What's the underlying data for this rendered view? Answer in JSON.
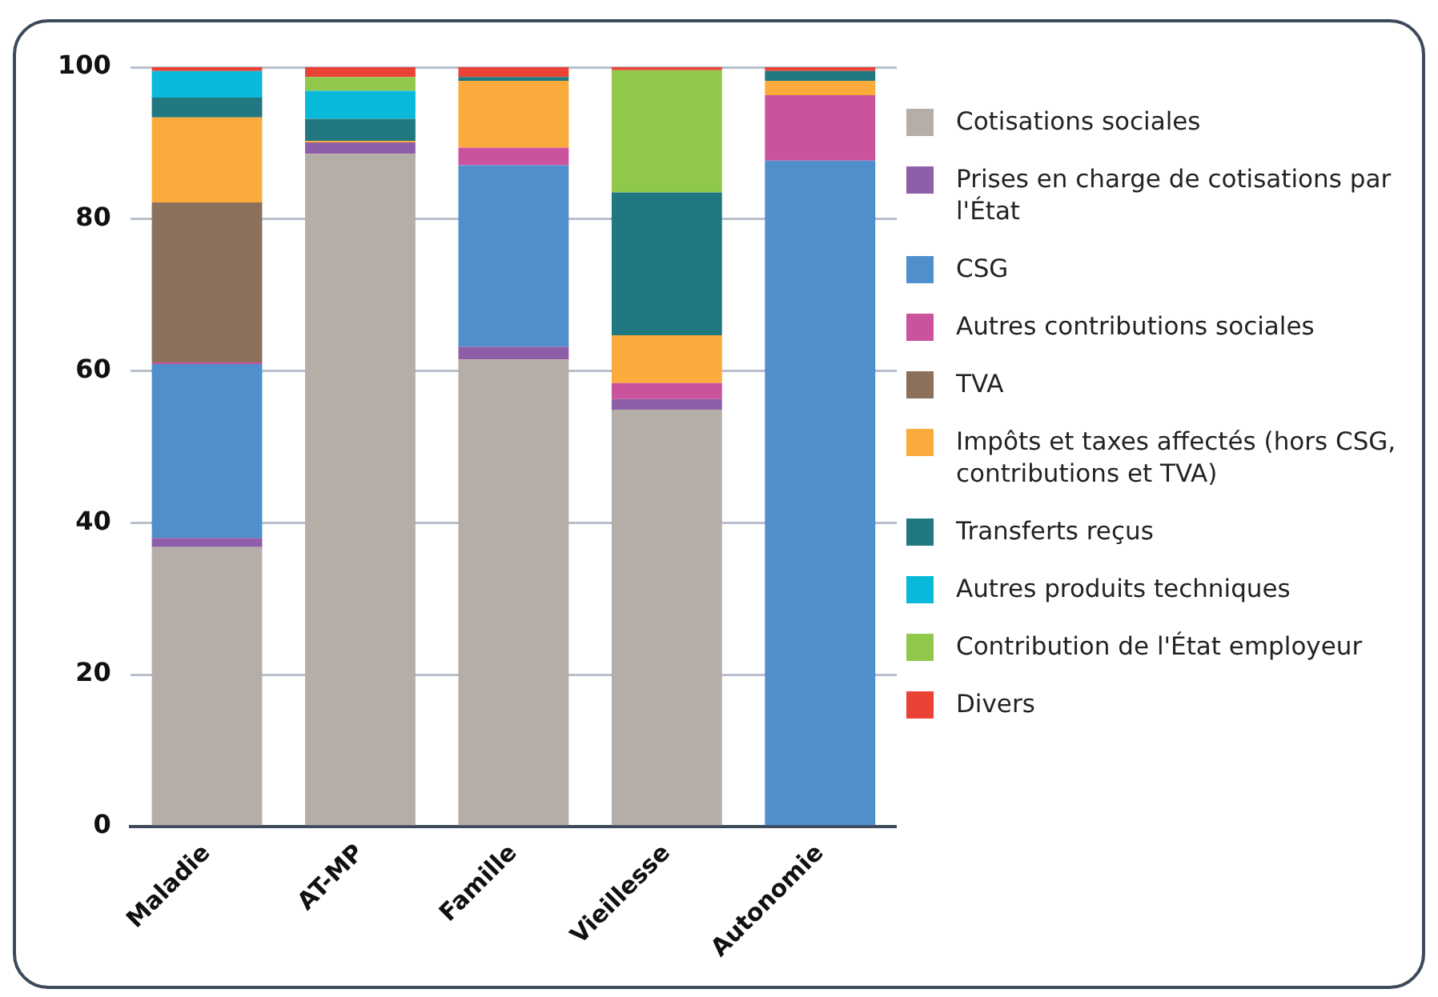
{
  "chart_data": {
    "type": "bar",
    "stacked": true,
    "categories": [
      "Maladie",
      "AT-MP",
      "Famille",
      "Vieillesse",
      "Autonomie"
    ],
    "series": [
      {
        "name": "Cotisations sociales",
        "color": "#b5ada8",
        "values": [
          36.8,
          88.6,
          61.5,
          54.9,
          null
        ]
      },
      {
        "name": "Prises en charge de cotisations par l'État",
        "color": "#8e5fa8",
        "values": [
          1.2,
          1.5,
          1.7,
          1.4,
          null
        ]
      },
      {
        "name": "CSG",
        "color": "#4f8fcc",
        "values": [
          22.9,
          null,
          23.9,
          null,
          87.7
        ]
      },
      {
        "name": "Autres contributions sociales",
        "color": "#cb529d",
        "values": [
          0.2,
          null,
          2.3,
          2.1,
          8.6
        ]
      },
      {
        "name": "TVA",
        "color": "#8b715c",
        "values": [
          21.1,
          null,
          null,
          null,
          null
        ]
      },
      {
        "name": "Impôts et taxes affectés (hors CSG, contributions et TVA)",
        "color": "#fbab3b",
        "values": [
          11.2,
          0.2,
          8.8,
          6.3,
          1.9
        ]
      },
      {
        "name": "Transferts reçus",
        "color": "#227880",
        "values": [
          2.6,
          2.9,
          0.5,
          18.8,
          1.3
        ]
      },
      {
        "name": "Autres produits techniques",
        "color": "#08b9d9",
        "values": [
          3.5,
          3.7,
          null,
          null,
          null
        ]
      },
      {
        "name": "Contribution de l'État employeur",
        "color": "#8fc84a",
        "values": [
          null,
          1.8,
          null,
          16.1,
          null
        ]
      },
      {
        "name": "Divers",
        "color": "#ea4335",
        "values": [
          0.5,
          1.3,
          1.3,
          0.4,
          0.5
        ]
      }
    ],
    "ylim": [
      0,
      100
    ],
    "yticks": [
      0,
      20,
      40,
      60,
      80,
      100
    ],
    "grid": "y",
    "legend": "right"
  }
}
